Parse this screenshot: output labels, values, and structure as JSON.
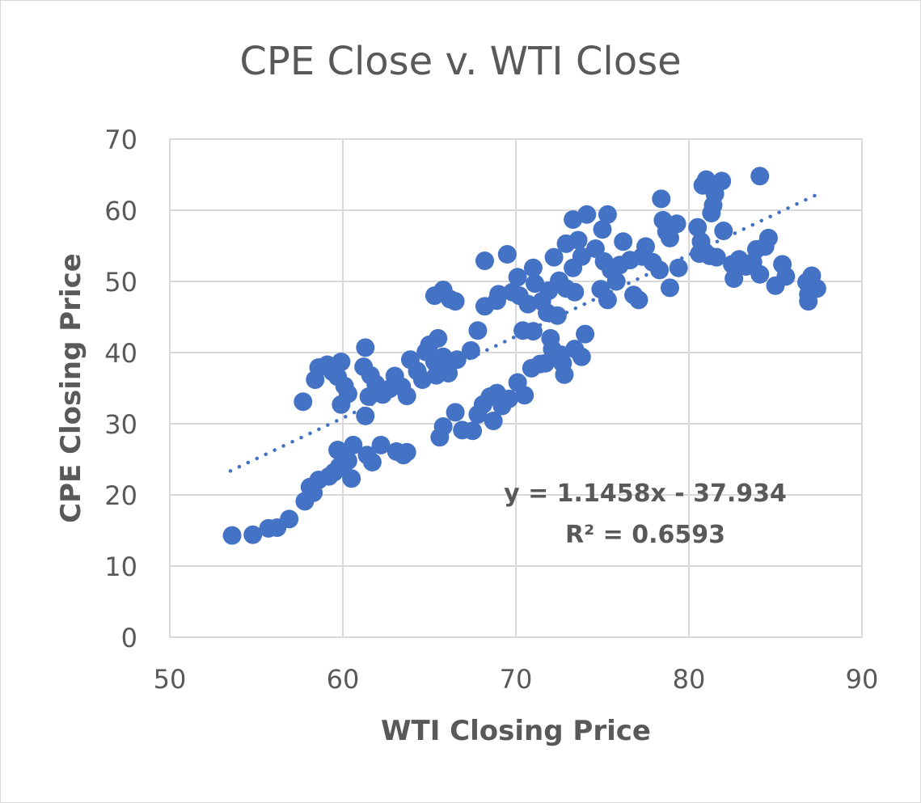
{
  "chart_data": {
    "type": "scatter",
    "title": "CPE Close v. WTI Close",
    "xlabel": "WTI Closing Price",
    "ylabel": "CPE Closing  Price",
    "xlim": [
      50,
      90
    ],
    "ylim": [
      0,
      70
    ],
    "xticks": [
      "50",
      "60",
      "70",
      "80",
      "90"
    ],
    "yticks": [
      "0",
      "10",
      "20",
      "30",
      "40",
      "50",
      "60",
      "70"
    ],
    "grid": true,
    "marker_color": "#4472c4",
    "trendline": {
      "type": "linear",
      "slope": 1.1458,
      "intercept": -37.934,
      "x_range": [
        53.5,
        87.5
      ],
      "style": "dotted",
      "equation_label": "y = 1.1458x - 37.934",
      "r2_label": "R² = 0.6593"
    },
    "points": [
      [
        53.6,
        14.3
      ],
      [
        54.8,
        14.4
      ],
      [
        55.7,
        15.3
      ],
      [
        56.2,
        15.4
      ],
      [
        56.9,
        16.6
      ],
      [
        57.8,
        19.1
      ],
      [
        58.1,
        21.1
      ],
      [
        58.3,
        20.3
      ],
      [
        58.6,
        22.1
      ],
      [
        59.2,
        22.6
      ],
      [
        59.5,
        23.2
      ],
      [
        59.8,
        24.0
      ],
      [
        59.7,
        26.3
      ],
      [
        60.3,
        24.8
      ],
      [
        60.6,
        27.0
      ],
      [
        60.5,
        22.3
      ],
      [
        61.4,
        25.6
      ],
      [
        61.7,
        24.6
      ],
      [
        62.2,
        27.0
      ],
      [
        63.1,
        26.1
      ],
      [
        63.5,
        25.6
      ],
      [
        63.7,
        26.0
      ],
      [
        57.7,
        33.1
      ],
      [
        58.4,
        36.2
      ],
      [
        58.6,
        37.9
      ],
      [
        59.1,
        38.3
      ],
      [
        59.4,
        37.3
      ],
      [
        59.7,
        36.6
      ],
      [
        59.9,
        38.7
      ],
      [
        60.1,
        35.3
      ],
      [
        60.3,
        34.2
      ],
      [
        59.9,
        32.7
      ],
      [
        61.3,
        31.1
      ],
      [
        61.3,
        40.7
      ],
      [
        61.2,
        38.0
      ],
      [
        61.6,
        36.8
      ],
      [
        61.9,
        35.6
      ],
      [
        61.5,
        33.8
      ],
      [
        62.3,
        34.1
      ],
      [
        62.7,
        34.9
      ],
      [
        63.0,
        36.7
      ],
      [
        63.4,
        35.2
      ],
      [
        63.7,
        33.9
      ],
      [
        63.9,
        39.0
      ],
      [
        64.3,
        37.4
      ],
      [
        64.8,
        40.1
      ],
      [
        65.0,
        41.1
      ],
      [
        65.3,
        38.7
      ],
      [
        65.5,
        42.0
      ],
      [
        65.8,
        39.4
      ],
      [
        66.1,
        37.1
      ],
      [
        65.4,
        36.8
      ],
      [
        64.6,
        36.2
      ],
      [
        66.6,
        39.0
      ],
      [
        67.4,
        40.3
      ],
      [
        67.8,
        43.1
      ],
      [
        65.3,
        48.0
      ],
      [
        65.8,
        48.8
      ],
      [
        66.2,
        47.5
      ],
      [
        66.5,
        47.2
      ],
      [
        68.2,
        52.9
      ],
      [
        68.2,
        46.5
      ],
      [
        68.9,
        47.3
      ],
      [
        69.0,
        48.2
      ],
      [
        69.5,
        53.8
      ],
      [
        69.8,
        48.5
      ],
      [
        70.1,
        50.6
      ],
      [
        70.2,
        48.0
      ],
      [
        70.7,
        46.8
      ],
      [
        71.1,
        49.7
      ],
      [
        71.0,
        51.9
      ],
      [
        71.5,
        47.2
      ],
      [
        71.9,
        48.7
      ],
      [
        72.2,
        53.4
      ],
      [
        72.5,
        50.1
      ],
      [
        72.9,
        49.0
      ],
      [
        73.3,
        51.9
      ],
      [
        73.4,
        48.5
      ],
      [
        71.8,
        45.6
      ],
      [
        72.4,
        45.2
      ],
      [
        71.0,
        43.0
      ],
      [
        70.4,
        43.1
      ],
      [
        72.0,
        42.0
      ],
      [
        72.1,
        40.5
      ],
      [
        71.7,
        38.5
      ],
      [
        72.6,
        39.7
      ],
      [
        72.8,
        36.9
      ],
      [
        72.7,
        38.5
      ],
      [
        73.4,
        40.5
      ],
      [
        73.8,
        39.4
      ],
      [
        74.0,
        42.6
      ],
      [
        65.6,
        28.1
      ],
      [
        65.8,
        29.6
      ],
      [
        66.5,
        31.6
      ],
      [
        66.9,
        29.1
      ],
      [
        67.5,
        29.0
      ],
      [
        67.8,
        31.3
      ],
      [
        68.1,
        32.7
      ],
      [
        68.5,
        33.8
      ],
      [
        68.7,
        30.4
      ],
      [
        68.9,
        34.3
      ],
      [
        69.2,
        32.5
      ],
      [
        69.6,
        33.5
      ],
      [
        70.1,
        35.8
      ],
      [
        70.5,
        34.0
      ],
      [
        70.9,
        37.8
      ],
      [
        71.4,
        38.4
      ],
      [
        72.9,
        55.3
      ],
      [
        73.3,
        58.7
      ],
      [
        73.6,
        55.8
      ],
      [
        73.8,
        53.5
      ],
      [
        74.1,
        59.4
      ],
      [
        74.6,
        54.6
      ],
      [
        75.0,
        57.3
      ],
      [
        75.3,
        59.4
      ],
      [
        75.1,
        52.8
      ],
      [
        75.5,
        51.6
      ],
      [
        75.8,
        50.0
      ],
      [
        74.9,
        48.9
      ],
      [
        75.3,
        47.4
      ],
      [
        76.0,
        52.3
      ],
      [
        76.2,
        55.6
      ],
      [
        76.6,
        53.0
      ],
      [
        76.8,
        48.1
      ],
      [
        77.1,
        47.4
      ],
      [
        77.3,
        53.5
      ],
      [
        77.5,
        54.9
      ],
      [
        77.9,
        52.7
      ],
      [
        78.3,
        51.6
      ],
      [
        78.4,
        61.6
      ],
      [
        78.5,
        58.6
      ],
      [
        78.7,
        57.0
      ],
      [
        78.9,
        56.1
      ],
      [
        79.3,
        58.1
      ],
      [
        79.4,
        51.9
      ],
      [
        78.9,
        49.1
      ],
      [
        80.5,
        57.6
      ],
      [
        80.7,
        55.6
      ],
      [
        80.9,
        54.2
      ],
      [
        80.6,
        53.9
      ],
      [
        81.2,
        53.6
      ],
      [
        81.6,
        53.4
      ],
      [
        80.8,
        63.5
      ],
      [
        81.0,
        64.3
      ],
      [
        81.5,
        62.3
      ],
      [
        81.3,
        59.6
      ],
      [
        81.4,
        60.7
      ],
      [
        81.9,
        64.1
      ],
      [
        82.0,
        57.1
      ],
      [
        82.5,
        52.4
      ],
      [
        82.6,
        50.4
      ],
      [
        82.9,
        53.1
      ],
      [
        83.3,
        52.1
      ],
      [
        83.7,
        52.7
      ],
      [
        83.9,
        54.5
      ],
      [
        84.1,
        51.0
      ],
      [
        84.4,
        54.9
      ],
      [
        84.6,
        56.1
      ],
      [
        84.1,
        64.8
      ],
      [
        85.0,
        49.4
      ],
      [
        85.4,
        52.4
      ],
      [
        85.6,
        50.7
      ],
      [
        86.8,
        49.9
      ],
      [
        86.9,
        47.2
      ],
      [
        87.1,
        50.8
      ],
      [
        87.4,
        49.0
      ],
      [
        86.9,
        48.2
      ]
    ]
  }
}
